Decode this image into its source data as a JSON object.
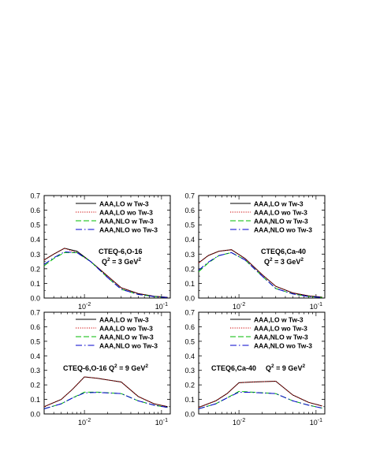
{
  "chart_data": [
    {
      "type": "line",
      "x_scale": "log",
      "xlim": [
        0.003,
        0.13
      ],
      "ylim": [
        0,
        0.7
      ],
      "yticks": [
        "0.0",
        "0.1",
        "0.2",
        "0.3",
        "0.4",
        "0.5",
        "0.6",
        "0.7"
      ],
      "xticks": [
        {
          "value": 0.01,
          "base": "10",
          "exp": "-2"
        },
        {
          "value": 0.1,
          "base": "10",
          "exp": "-1"
        }
      ],
      "annotation": {
        "line1": "CTEQ-6,O-16",
        "q2_prefix": "Q",
        "q2_sup": "2",
        "q2_value": " = 3 GeV",
        "q2_unit_sup": "2"
      },
      "series": [
        {
          "name": "AAA,LO w Tw-3",
          "color": "#000000",
          "dash": "solid",
          "x": [
            0.003,
            0.004,
            0.0055,
            0.008,
            0.012,
            0.02,
            0.03,
            0.05,
            0.08,
            0.12
          ],
          "y": [
            0.26,
            0.3,
            0.34,
            0.32,
            0.25,
            0.15,
            0.07,
            0.03,
            0.012,
            0.005
          ]
        },
        {
          "name": "AAA,LO wo Tw-3",
          "color": "#cc0000",
          "dash": "dotted",
          "x": [
            0.003,
            0.004,
            0.0055,
            0.008,
            0.012,
            0.02,
            0.03,
            0.05,
            0.08,
            0.12
          ],
          "y": [
            0.26,
            0.3,
            0.34,
            0.31,
            0.25,
            0.15,
            0.07,
            0.03,
            0.012,
            0.005
          ]
        },
        {
          "name": "AAA,NLO w Tw-3",
          "color": "#00bb00",
          "dash": "dashed",
          "x": [
            0.003,
            0.004,
            0.0055,
            0.008,
            0.012,
            0.02,
            0.03,
            0.05,
            0.08,
            0.12
          ],
          "y": [
            0.22,
            0.27,
            0.31,
            0.31,
            0.25,
            0.14,
            0.06,
            0.025,
            0.01,
            0.004
          ]
        },
        {
          "name": "AAA,NLO wo Tw-3",
          "color": "#0000cc",
          "dash": "dashdot",
          "x": [
            0.003,
            0.004,
            0.0055,
            0.008,
            0.012,
            0.02,
            0.03,
            0.05,
            0.08,
            0.12
          ],
          "y": [
            0.23,
            0.275,
            0.315,
            0.31,
            0.25,
            0.14,
            0.06,
            0.025,
            0.01,
            0.004
          ]
        }
      ]
    },
    {
      "type": "line",
      "x_scale": "log",
      "xlim": [
        0.003,
        0.13
      ],
      "ylim": [
        0,
        0.7
      ],
      "yticks": [
        "0.0",
        "0.1",
        "0.2",
        "0.3",
        "0.4",
        "0.5",
        "0.6",
        "0.7"
      ],
      "xticks": [
        {
          "value": 0.01,
          "base": "10",
          "exp": "-2"
        },
        {
          "value": 0.1,
          "base": "10",
          "exp": "-1"
        }
      ],
      "annotation": {
        "line1": "CTEQ6,Ca-40",
        "q2_prefix": "Q",
        "q2_sup": "2",
        "q2_value": " = 3 GeV",
        "q2_unit_sup": "2"
      },
      "series": [
        {
          "name": "AAA,LO w Tw-3",
          "color": "#000000",
          "dash": "solid",
          "x": [
            0.003,
            0.004,
            0.0055,
            0.008,
            0.012,
            0.02,
            0.03,
            0.05,
            0.08,
            0.12
          ],
          "y": [
            0.24,
            0.29,
            0.32,
            0.33,
            0.27,
            0.16,
            0.08,
            0.035,
            0.015,
            0.006
          ]
        },
        {
          "name": "AAA,LO wo Tw-3",
          "color": "#cc0000",
          "dash": "dotted",
          "x": [
            0.003,
            0.004,
            0.0055,
            0.008,
            0.012,
            0.02,
            0.03,
            0.05,
            0.08,
            0.12
          ],
          "y": [
            0.24,
            0.29,
            0.32,
            0.33,
            0.27,
            0.16,
            0.08,
            0.035,
            0.015,
            0.006
          ]
        },
        {
          "name": "AAA,NLO w Tw-3",
          "color": "#00bb00",
          "dash": "dashed",
          "x": [
            0.003,
            0.004,
            0.0055,
            0.008,
            0.012,
            0.02,
            0.03,
            0.05,
            0.08,
            0.12
          ],
          "y": [
            0.18,
            0.24,
            0.29,
            0.31,
            0.26,
            0.15,
            0.065,
            0.028,
            0.011,
            0.004
          ]
        },
        {
          "name": "AAA,NLO wo Tw-3",
          "color": "#0000cc",
          "dash": "dashdot",
          "x": [
            0.003,
            0.004,
            0.0055,
            0.008,
            0.012,
            0.02,
            0.03,
            0.05,
            0.08,
            0.12
          ],
          "y": [
            0.19,
            0.245,
            0.29,
            0.31,
            0.26,
            0.15,
            0.065,
            0.028,
            0.011,
            0.004
          ]
        }
      ]
    },
    {
      "type": "line",
      "x_scale": "log",
      "xlim": [
        0.003,
        0.13
      ],
      "ylim": [
        0,
        0.7
      ],
      "yticks": [
        "0.0",
        "0.1",
        "0.2",
        "0.3",
        "0.4",
        "0.5",
        "0.6",
        "0.7"
      ],
      "xticks": [
        {
          "value": 0.01,
          "base": "10",
          "exp": "-2"
        },
        {
          "value": 0.1,
          "base": "10",
          "exp": "-1"
        }
      ],
      "annotation": {
        "line1": "CTEQ-6,O-16 Q",
        "q2_prefix": "",
        "q2_sup": "2",
        "q2_value": " = 9 GeV",
        "q2_unit_sup": "2"
      },
      "series": [
        {
          "name": "AAA,LO w Tw-3",
          "color": "#000000",
          "dash": "solid",
          "x": [
            0.003,
            0.005,
            0.007,
            0.01,
            0.015,
            0.03,
            0.05,
            0.08,
            0.12
          ],
          "y": [
            0.05,
            0.1,
            0.17,
            0.255,
            0.245,
            0.22,
            0.12,
            0.07,
            0.05
          ]
        },
        {
          "name": "AAA,LO wo Tw-3",
          "color": "#cc0000",
          "dash": "dotted",
          "x": [
            0.003,
            0.005,
            0.007,
            0.01,
            0.015,
            0.03,
            0.05,
            0.08,
            0.12
          ],
          "y": [
            0.05,
            0.1,
            0.17,
            0.255,
            0.245,
            0.22,
            0.12,
            0.07,
            0.05
          ]
        },
        {
          "name": "AAA,NLO w Tw-3",
          "color": "#00bb00",
          "dash": "dashed",
          "x": [
            0.003,
            0.005,
            0.007,
            0.01,
            0.015,
            0.03,
            0.05,
            0.08,
            0.12
          ],
          "y": [
            0.035,
            0.07,
            0.11,
            0.15,
            0.15,
            0.14,
            0.09,
            0.06,
            0.045
          ]
        },
        {
          "name": "AAA,NLO wo Tw-3",
          "color": "#0000cc",
          "dash": "dashdot",
          "x": [
            0.003,
            0.005,
            0.007,
            0.01,
            0.015,
            0.03,
            0.05,
            0.08,
            0.12
          ],
          "y": [
            0.035,
            0.07,
            0.11,
            0.145,
            0.148,
            0.14,
            0.09,
            0.06,
            0.045
          ]
        }
      ]
    },
    {
      "type": "line",
      "x_scale": "log",
      "xlim": [
        0.003,
        0.13
      ],
      "ylim": [
        0,
        0.7
      ],
      "yticks": [
        "0.0",
        "0.1",
        "0.2",
        "0.3",
        "0.4",
        "0.5",
        "0.6",
        "0.7"
      ],
      "xticks": [
        {
          "value": 0.01,
          "base": "10",
          "exp": "-2"
        },
        {
          "value": 0.1,
          "base": "10",
          "exp": "-1"
        }
      ],
      "annotation": {
        "line1": "CTEQ6,Ca-40",
        "q2_prefix": "Q",
        "q2_sup": "2",
        "q2_value": " = 9 GeV",
        "q2_unit_sup": "2"
      },
      "series": [
        {
          "name": "AAA,LO w Tw-3",
          "color": "#000000",
          "dash": "solid",
          "x": [
            0.003,
            0.005,
            0.007,
            0.01,
            0.015,
            0.03,
            0.05,
            0.08,
            0.12
          ],
          "y": [
            0.045,
            0.09,
            0.14,
            0.215,
            0.22,
            0.225,
            0.13,
            0.08,
            0.055
          ]
        },
        {
          "name": "AAA,LO wo Tw-3",
          "color": "#cc0000",
          "dash": "dotted",
          "x": [
            0.003,
            0.005,
            0.007,
            0.01,
            0.015,
            0.03,
            0.05,
            0.08,
            0.12
          ],
          "y": [
            0.045,
            0.09,
            0.14,
            0.215,
            0.22,
            0.225,
            0.13,
            0.08,
            0.055
          ]
        },
        {
          "name": "AAA,NLO w Tw-3",
          "color": "#00bb00",
          "dash": "dashed",
          "x": [
            0.003,
            0.005,
            0.007,
            0.01,
            0.015,
            0.03,
            0.05,
            0.08,
            0.12
          ],
          "y": [
            0.035,
            0.07,
            0.11,
            0.155,
            0.15,
            0.14,
            0.09,
            0.06,
            0.04
          ]
        },
        {
          "name": "AAA,NLO wo Tw-3",
          "color": "#0000cc",
          "dash": "dashdot",
          "x": [
            0.003,
            0.005,
            0.007,
            0.01,
            0.015,
            0.03,
            0.05,
            0.08,
            0.12
          ],
          "y": [
            0.035,
            0.07,
            0.11,
            0.15,
            0.148,
            0.14,
            0.09,
            0.06,
            0.04
          ]
        }
      ]
    }
  ]
}
